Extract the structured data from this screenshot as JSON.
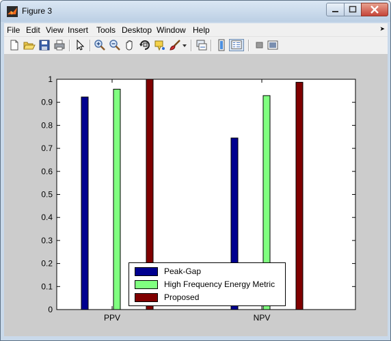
{
  "window": {
    "title": "Figure 3"
  },
  "menu": {
    "items": [
      "File",
      "Edit",
      "View",
      "Insert",
      "Tools",
      "Desktop",
      "Window",
      "Help"
    ]
  },
  "toolbar": {
    "icons": [
      "new-figure-icon",
      "open-file-icon",
      "save-icon",
      "print-icon",
      "pointer-icon",
      "zoom-in-icon",
      "zoom-out-icon",
      "pan-hand-icon",
      "rotate-3d-icon",
      "data-cursor-icon",
      "brush-icon",
      "dropdown-arrow-icon",
      "link-plot-icon",
      "colorbar-icon",
      "legend-icon",
      "hide-plot-tools-icon",
      "show-plot-tools-icon"
    ]
  },
  "chart_data": {
    "type": "bar",
    "categories": [
      "PPV",
      "NPV"
    ],
    "series": [
      {
        "name": "Peak-Gap",
        "color": "#00008f",
        "values": [
          0.923,
          0.745
        ]
      },
      {
        "name": "High Frequency Energy Metric",
        "color": "#80ff80",
        "values": [
          0.957,
          0.929
        ]
      },
      {
        "name": "Proposed",
        "color": "#800000",
        "values": [
          1.0,
          0.987
        ]
      }
    ],
    "ylim": [
      0,
      1
    ],
    "yticks": [
      "0",
      "0.1",
      "0.2",
      "0.3",
      "0.4",
      "0.5",
      "0.6",
      "0.7",
      "0.8",
      "0.9",
      "1"
    ],
    "legend_position": "bottom-center",
    "grid": false
  }
}
